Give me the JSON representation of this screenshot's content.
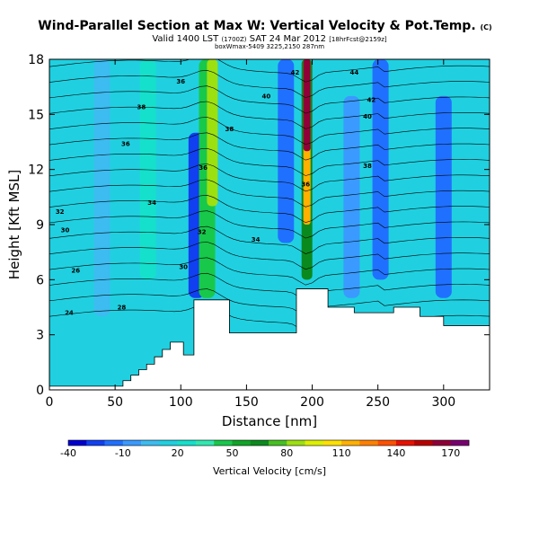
{
  "header": {
    "title": "Wind-Parallel Section at Max W: Vertical Velocity & Pot.Temp.",
    "title_mark": "(C)",
    "subtitle_main": "Valid 1400 LST",
    "subtitle_utc": "(1700Z)",
    "subtitle_date": "SAT 24 Mar 2012",
    "subtitle_run": "[18hrFcst@2159z]",
    "subtitle_small": "boxWmax-5409 3225,2150 287nm"
  },
  "chart_data": {
    "type": "heatmap",
    "xlabel": "Distance [nm]",
    "ylabel": "Height [Kft MSL]",
    "xlim": [
      0,
      335
    ],
    "ylim": [
      0,
      18
    ],
    "xticks": [
      0,
      50,
      100,
      150,
      200,
      250,
      300
    ],
    "yticks": [
      0,
      3,
      6,
      9,
      12,
      15,
      18
    ],
    "terrain_kft": [
      [
        0,
        0.2
      ],
      [
        56,
        0.2
      ],
      [
        56,
        0.5
      ],
      [
        62,
        0.5
      ],
      [
        62,
        0.8
      ],
      [
        68,
        0.8
      ],
      [
        68,
        1.1
      ],
      [
        74,
        1.1
      ],
      [
        74,
        1.4
      ],
      [
        80,
        1.4
      ],
      [
        80,
        1.8
      ],
      [
        86,
        1.8
      ],
      [
        86,
        2.2
      ],
      [
        92,
        2.2
      ],
      [
        92,
        2.6
      ],
      [
        102,
        2.6
      ],
      [
        102,
        1.9
      ],
      [
        110,
        1.9
      ],
      [
        110,
        4.9
      ],
      [
        137,
        4.9
      ],
      [
        137,
        3.1
      ],
      [
        188,
        3.1
      ],
      [
        188,
        5.5
      ],
      [
        212,
        5.5
      ],
      [
        212,
        4.5
      ],
      [
        232,
        4.5
      ],
      [
        232,
        4.2
      ],
      [
        262,
        4.2
      ],
      [
        262,
        4.5
      ],
      [
        282,
        4.5
      ],
      [
        282,
        4.0
      ],
      [
        300,
        4.0
      ],
      [
        300,
        3.5
      ],
      [
        335,
        3.5
      ]
    ],
    "vertical_velocity_features": [
      {
        "x": 40,
        "z_bottom": 4,
        "z_top": 18,
        "w": 5
      },
      {
        "x": 75,
        "z_bottom": 6,
        "z_top": 18,
        "w": 20
      },
      {
        "x": 112,
        "z_bottom": 5,
        "z_top": 14,
        "w": -30
      },
      {
        "x": 120,
        "z_bottom": 5,
        "z_top": 18,
        "w": 40
      },
      {
        "x": 124,
        "z_bottom": 10,
        "z_top": 18,
        "w": 80
      },
      {
        "x": 150,
        "z_bottom": 10,
        "z_top": 18,
        "w": 15
      },
      {
        "x": 180,
        "z_bottom": 8,
        "z_top": 18,
        "w": -20
      },
      {
        "x": 196,
        "z_bottom": 6,
        "z_top": 18,
        "w": 60
      },
      {
        "x": 196,
        "z_bottom": 9,
        "z_top": 18,
        "w": 110
      },
      {
        "x": 196,
        "z_bottom": 13,
        "z_top": 18,
        "w": 160
      },
      {
        "x": 230,
        "z_bottom": 5,
        "z_top": 16,
        "w": -10
      },
      {
        "x": 252,
        "z_bottom": 6,
        "z_top": 18,
        "w": -20
      },
      {
        "x": 300,
        "z_bottom": 5,
        "z_top": 16,
        "w": -15
      }
    ],
    "potential_temperature_labels": [
      {
        "label": "24",
        "x": 15,
        "z": 4.2
      },
      {
        "label": "26",
        "x": 20,
        "z": 6.5
      },
      {
        "label": "28",
        "x": 55,
        "z": 4.5
      },
      {
        "label": "30",
        "x": 12,
        "z": 8.7
      },
      {
        "label": "32",
        "x": 8,
        "z": 9.7
      },
      {
        "label": "34",
        "x": 78,
        "z": 10.2
      },
      {
        "label": "30",
        "x": 102,
        "z": 6.7
      },
      {
        "label": "32",
        "x": 116,
        "z": 8.6
      },
      {
        "label": "34",
        "x": 157,
        "z": 8.2
      },
      {
        "label": "36",
        "x": 58,
        "z": 13.4
      },
      {
        "label": "38",
        "x": 70,
        "z": 15.4
      },
      {
        "label": "36",
        "x": 117,
        "z": 12.1
      },
      {
        "label": "38",
        "x": 137,
        "z": 14.2
      },
      {
        "label": "36",
        "x": 195,
        "z": 11.2
      },
      {
        "label": "38",
        "x": 242,
        "z": 12.2
      },
      {
        "label": "40",
        "x": 165,
        "z": 16.0
      },
      {
        "label": "40",
        "x": 242,
        "z": 14.9
      },
      {
        "label": "42",
        "x": 187,
        "z": 17.3
      },
      {
        "label": "42",
        "x": 245,
        "z": 15.8
      },
      {
        "label": "44",
        "x": 232,
        "z": 17.3
      },
      {
        "label": "36",
        "x": 100,
        "z": 16.8
      }
    ],
    "colorbar": {
      "label": "Vertical Velocity [cm/s]",
      "tick_labels": [
        "-40",
        "-10",
        "20",
        "50",
        "80",
        "110",
        "140",
        "170"
      ],
      "tick_values": [
        -40,
        -10,
        20,
        50,
        80,
        110,
        140,
        170
      ],
      "range": [
        -40,
        180
      ],
      "step": 10,
      "colors": [
        "#0000d0",
        "#1040f0",
        "#2070ff",
        "#3a9aff",
        "#3cbcf0",
        "#20d0e0",
        "#15e0cc",
        "#30e8b0",
        "#18c84a",
        "#10a428",
        "#0a8a1e",
        "#46c020",
        "#9ce010",
        "#dcf000",
        "#ffe000",
        "#ffb000",
        "#ff8000",
        "#ff5000",
        "#e81000",
        "#b80000",
        "#900038",
        "#780070"
      ]
    }
  }
}
